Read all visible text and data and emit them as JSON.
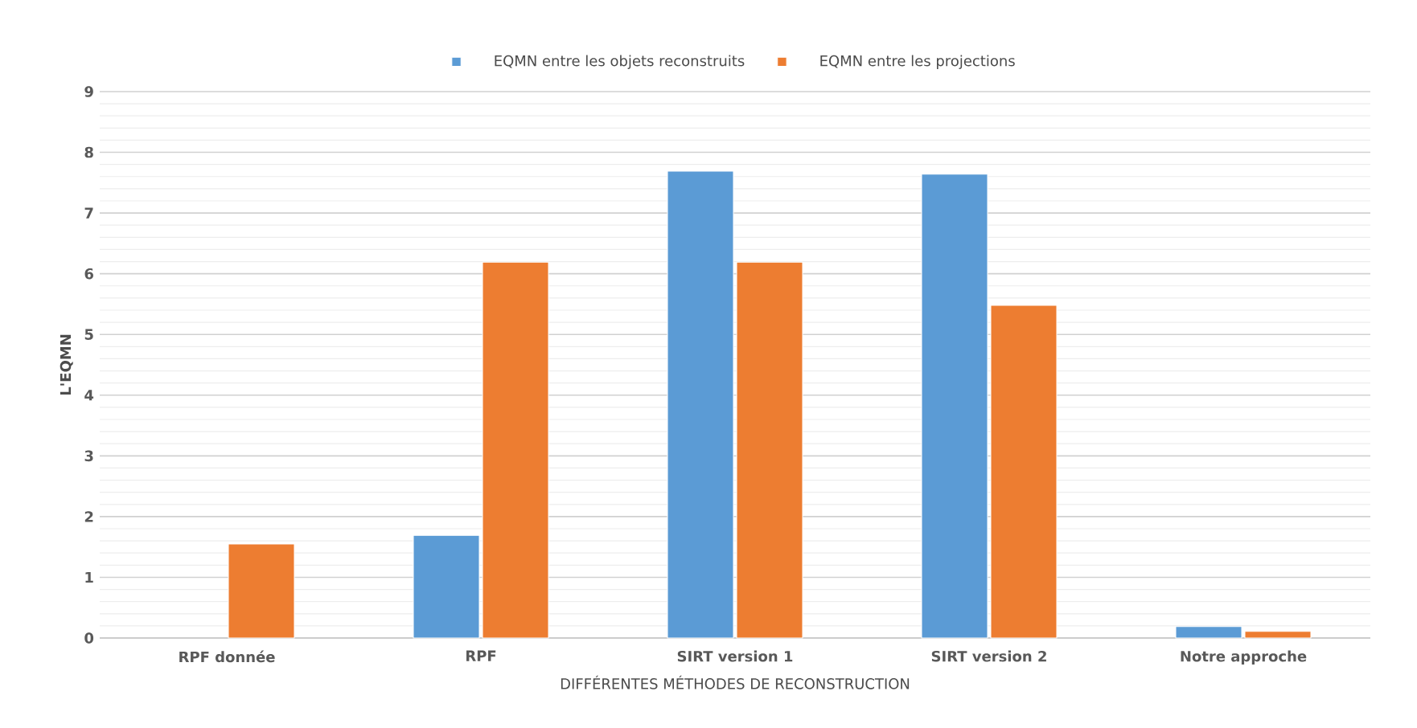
{
  "chart_data": {
    "type": "bar",
    "xlabel": "DIFFÉRENTES MÉTHODES DE RECONSTRUCTION",
    "ylabel": "L'EQMN",
    "categories": [
      "RPF donnée",
      "RPF",
      "SIRT version 1",
      "SIRT version 2",
      "Notre approche"
    ],
    "series": [
      {
        "name": "EQMN entre les objets reconstruits",
        "color": "#5b9bd5",
        "values": [
          null,
          1.69,
          7.69,
          7.64,
          0.19
        ]
      },
      {
        "name": "EQMN entre les projections",
        "color": "#ed7d31",
        "values": [
          1.55,
          6.19,
          6.19,
          5.48,
          0.11
        ]
      }
    ],
    "ylim": [
      0,
      9
    ],
    "yticks": [
      0,
      1,
      2,
      3,
      4,
      5,
      6,
      7,
      8,
      9
    ],
    "grid": "y",
    "legend": "top"
  }
}
